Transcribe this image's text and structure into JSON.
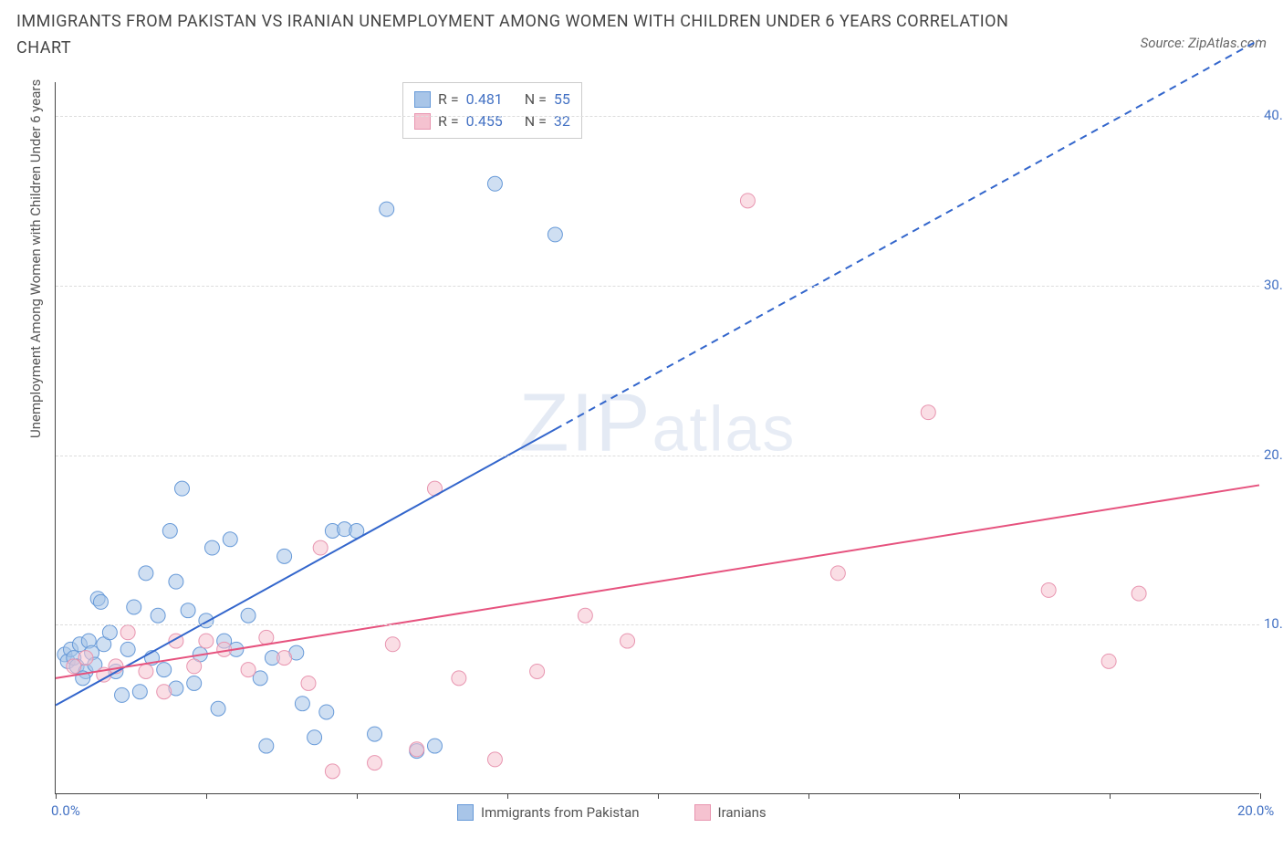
{
  "title": "IMMIGRANTS FROM PAKISTAN VS IRANIAN UNEMPLOYMENT AMONG WOMEN WITH CHILDREN UNDER 6 YEARS CORRELATION CHART",
  "source": "Source: ZipAtlas.com",
  "watermark_main": "ZIP",
  "watermark_sub": "atlas",
  "y_axis_label": "Unemployment Among Women with Children Under 6 years",
  "chart": {
    "type": "scatter",
    "xlim": [
      0,
      20
    ],
    "ylim": [
      0,
      42
    ],
    "x_ticks": [
      0,
      2.5,
      5,
      7.5,
      10,
      12.5,
      15,
      17.5,
      20
    ],
    "x_tick_labels": {
      "0": "0.0%",
      "20": "20.0%"
    },
    "y_ticks": [
      10,
      20,
      30,
      40
    ],
    "y_tick_labels": {
      "10": "10.0%",
      "20": "20.0%",
      "30": "30.0%",
      "40": "40.0%"
    },
    "background_color": "#ffffff",
    "grid_color": "#dddddd",
    "marker_radius": 8,
    "marker_opacity": 0.55,
    "series": [
      {
        "name": "Immigrants from Pakistan",
        "color_fill": "#a8c5e8",
        "color_stroke": "#6699d8",
        "R": "0.481",
        "N": "55",
        "trend": {
          "x1": 0,
          "y1": 5.2,
          "x2": 8.3,
          "y2": 21.5,
          "x2_dash": 20,
          "y2_dash": 44.5,
          "stroke": "#3366cc",
          "width": 2
        },
        "points": [
          [
            0.15,
            8.2
          ],
          [
            0.2,
            7.8
          ],
          [
            0.25,
            8.5
          ],
          [
            0.3,
            8.0
          ],
          [
            0.35,
            7.5
          ],
          [
            0.4,
            8.8
          ],
          [
            0.5,
            7.2
          ],
          [
            0.55,
            9.0
          ],
          [
            0.6,
            8.3
          ],
          [
            0.65,
            7.6
          ],
          [
            0.7,
            11.5
          ],
          [
            0.75,
            11.3
          ],
          [
            0.8,
            8.8
          ],
          [
            0.9,
            9.5
          ],
          [
            1.0,
            7.2
          ],
          [
            1.1,
            5.8
          ],
          [
            1.2,
            8.5
          ],
          [
            1.3,
            11.0
          ],
          [
            1.5,
            13.0
          ],
          [
            1.6,
            8.0
          ],
          [
            1.7,
            10.5
          ],
          [
            1.8,
            7.3
          ],
          [
            1.9,
            15.5
          ],
          [
            2.0,
            12.5
          ],
          [
            2.1,
            18.0
          ],
          [
            2.2,
            10.8
          ],
          [
            2.3,
            6.5
          ],
          [
            2.4,
            8.2
          ],
          [
            2.5,
            10.2
          ],
          [
            2.6,
            14.5
          ],
          [
            2.7,
            5.0
          ],
          [
            2.8,
            9.0
          ],
          [
            2.9,
            15.0
          ],
          [
            3.0,
            8.5
          ],
          [
            3.2,
            10.5
          ],
          [
            3.4,
            6.8
          ],
          [
            3.5,
            2.8
          ],
          [
            3.6,
            8.0
          ],
          [
            3.8,
            14.0
          ],
          [
            4.0,
            8.3
          ],
          [
            4.1,
            5.3
          ],
          [
            4.3,
            3.3
          ],
          [
            4.5,
            4.8
          ],
          [
            4.6,
            15.5
          ],
          [
            4.8,
            15.6
          ],
          [
            5.0,
            15.5
          ],
          [
            5.3,
            3.5
          ],
          [
            5.5,
            34.5
          ],
          [
            6.0,
            2.5
          ],
          [
            6.3,
            2.8
          ],
          [
            7.3,
            36.0
          ],
          [
            8.3,
            33.0
          ],
          [
            1.4,
            6.0
          ],
          [
            2.0,
            6.2
          ],
          [
            0.45,
            6.8
          ]
        ]
      },
      {
        "name": "Iranians",
        "color_fill": "#f5c2d0",
        "color_stroke": "#e895b0",
        "R": "0.455",
        "N": "32",
        "trend": {
          "x1": 0,
          "y1": 6.8,
          "x2": 20,
          "y2": 18.2,
          "stroke": "#e6527e",
          "width": 2
        },
        "points": [
          [
            0.3,
            7.5
          ],
          [
            0.5,
            8.0
          ],
          [
            0.8,
            7.0
          ],
          [
            1.0,
            7.5
          ],
          [
            1.2,
            9.5
          ],
          [
            1.5,
            7.2
          ],
          [
            1.8,
            6.0
          ],
          [
            2.0,
            9.0
          ],
          [
            2.3,
            7.5
          ],
          [
            2.5,
            9.0
          ],
          [
            2.8,
            8.5
          ],
          [
            3.2,
            7.3
          ],
          [
            3.5,
            9.2
          ],
          [
            3.8,
            8.0
          ],
          [
            4.2,
            6.5
          ],
          [
            4.4,
            14.5
          ],
          [
            4.6,
            1.3
          ],
          [
            5.3,
            1.8
          ],
          [
            5.6,
            8.8
          ],
          [
            6.0,
            2.6
          ],
          [
            6.3,
            18.0
          ],
          [
            6.7,
            6.8
          ],
          [
            7.3,
            2.0
          ],
          [
            8.0,
            7.2
          ],
          [
            8.8,
            10.5
          ],
          [
            9.5,
            9.0
          ],
          [
            11.5,
            35.0
          ],
          [
            13.0,
            13.0
          ],
          [
            14.5,
            22.5
          ],
          [
            16.5,
            12.0
          ],
          [
            17.5,
            7.8
          ],
          [
            18.0,
            11.8
          ]
        ]
      }
    ]
  },
  "legend_stats_labels": {
    "R": "R =",
    "N": "N ="
  },
  "axis_label_color": "#4472c4"
}
